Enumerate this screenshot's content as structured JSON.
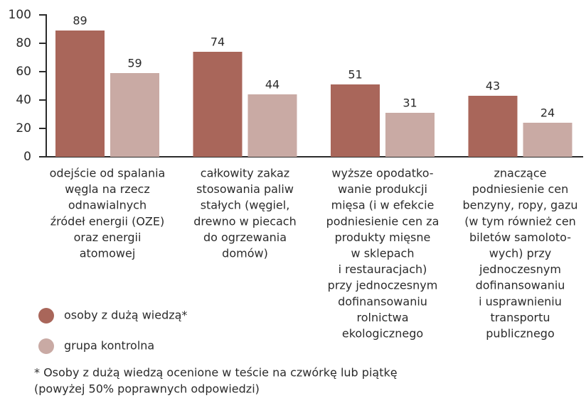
{
  "chart_data": {
    "type": "bar",
    "categories": [
      [
        "odejście od spalania",
        "węgla na rzecz",
        "odnawialnych",
        "źródeł energii (OZE)",
        "oraz energii",
        "atomowej"
      ],
      [
        "całkowity zakaz",
        "stosowania paliw",
        "stałych (węgiel,",
        "drewno w piecach",
        "do ogrzewania",
        "domów)"
      ],
      [
        "wyższe opodatko-",
        "wanie produkcji",
        "mięsa (i w efekcie",
        "podniesienie cen za",
        "produkty mięsne",
        "w sklepach",
        "i restauracjach)",
        "przy jednoczesnym",
        "dofinansowaniu",
        "rolnictwa",
        "ekologicznego"
      ],
      [
        "znaczące",
        "podniesienie cen",
        "benzyny, ropy, gazu",
        "(w tym również cen",
        "biletów samoloto-",
        "wych) przy",
        "jednoczesnym",
        "dofinansowaniu",
        "i usprawnieniu",
        "transportu",
        "publicznego"
      ]
    ],
    "series": [
      {
        "name": "osoby z dużą wiedzą*",
        "color": "#a9665a",
        "values": [
          89,
          74,
          51,
          43
        ]
      },
      {
        "name": "grupa kontrolna",
        "color": "#c9aaa4",
        "values": [
          59,
          44,
          31,
          24
        ]
      }
    ],
    "ylim": [
      0,
      100
    ],
    "yticks": [
      0,
      20,
      40,
      60,
      80,
      100
    ],
    "footnote": [
      "* Osoby z dużą wiedzą ocenione w teście na czwórkę lub piątkę",
      "(powyżej 50% poprawnych odpowiedzi)"
    ]
  }
}
